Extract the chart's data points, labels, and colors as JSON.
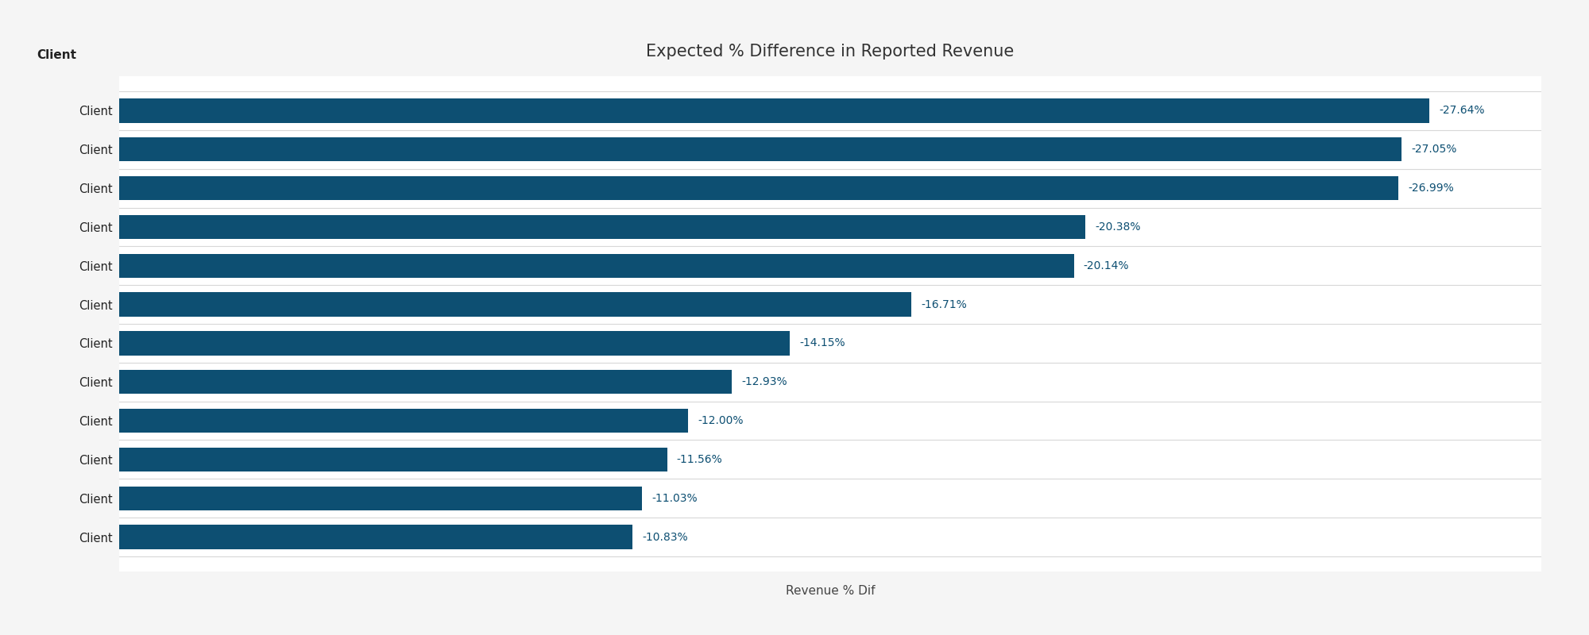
{
  "title": "Expected % Difference in Reported Revenue",
  "xlabel": "Revenue % Dif",
  "ylabel_header": "Client",
  "categories": [
    "Client",
    "Client",
    "Client",
    "Client",
    "Client",
    "Client",
    "Client",
    "Client",
    "Client",
    "Client",
    "Client",
    "Client"
  ],
  "values": [
    -27.64,
    -27.05,
    -26.99,
    -20.38,
    -20.14,
    -16.71,
    -14.15,
    -12.93,
    -12.0,
    -11.56,
    -11.03,
    -10.83
  ],
  "labels": [
    "-27.64%",
    "-27.05%",
    "-26.99%",
    "-20.38%",
    "-20.14%",
    "-16.71%",
    "-14.15%",
    "-12.93%",
    "-12.00%",
    "-11.56%",
    "-11.03%",
    "-10.83%"
  ],
  "bar_color": "#0d4f72",
  "label_color": "#0d4f72",
  "background_color": "#f5f5f5",
  "plot_background_color": "#ffffff",
  "title_fontsize": 15,
  "label_fontsize": 10,
  "tick_fontsize": 10.5,
  "xlabel_fontsize": 11,
  "ylabel_header_fontsize": 11,
  "bar_height": 0.62,
  "separator_color": "#d8d8d8",
  "xlim_min": 0,
  "xlim_max": 30
}
